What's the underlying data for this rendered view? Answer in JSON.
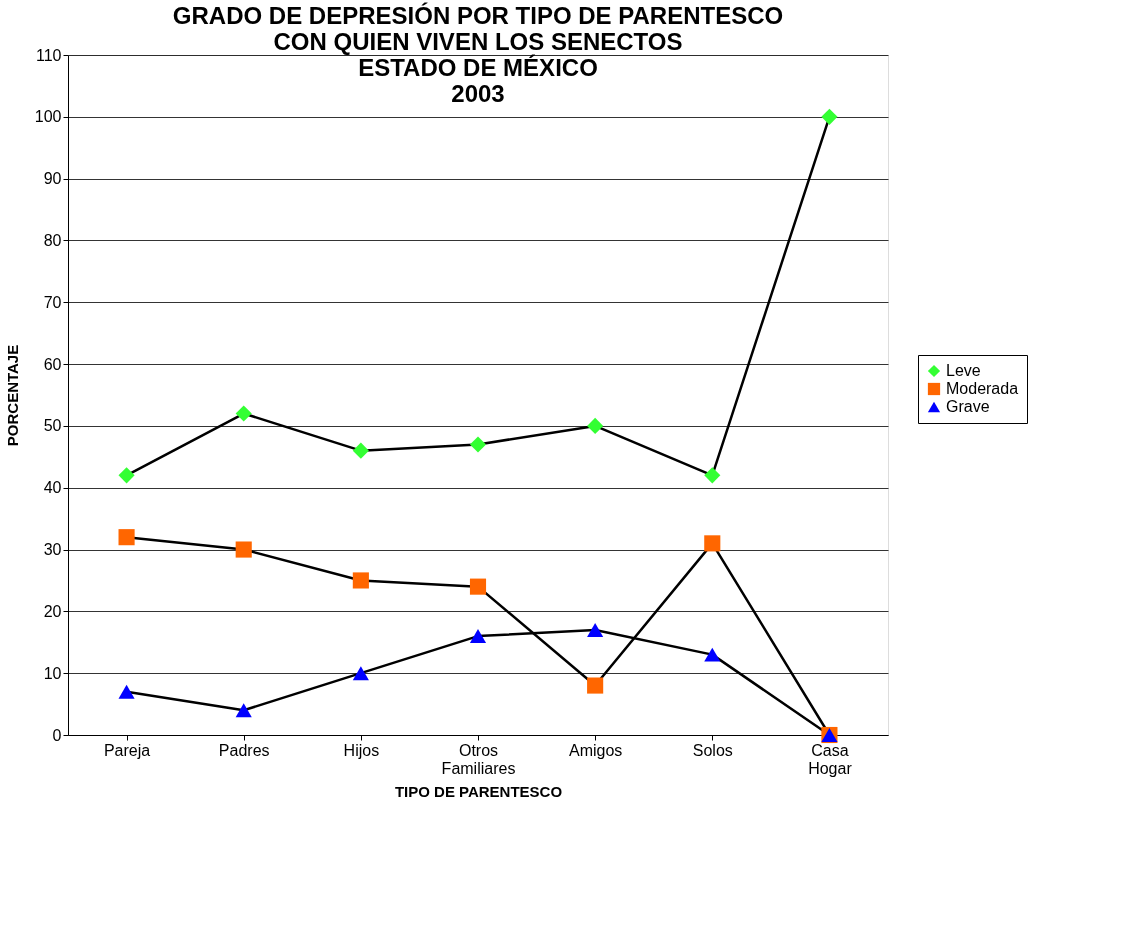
{
  "chart_data": {
    "type": "line",
    "title": "GRADO DE DEPRESIÓN POR TIPO DE PARENTESCO\nCON QUIEN VIVEN LOS SENECTOS\nESTADO DE MÉXICO\n2003",
    "xlabel": "TIPO DE PARENTESCO",
    "ylabel": "PORCENTAJE",
    "categories": [
      "Pareja",
      "Padres",
      "Hijos",
      "Otros Familiares",
      "Amigos",
      "Solos",
      "Casa Hogar"
    ],
    "series": [
      {
        "name": "Leve",
        "color": "#33ff33",
        "marker": "diamond",
        "values": [
          42,
          52,
          46,
          47,
          50,
          42,
          100
        ]
      },
      {
        "name": "Moderada",
        "color": "#ff6600",
        "marker": "square",
        "values": [
          32,
          30,
          25,
          24,
          8,
          31,
          0
        ]
      },
      {
        "name": "Grave",
        "color": "#0000ff",
        "marker": "triangle",
        "values": [
          7,
          4,
          10,
          16,
          17,
          13,
          0
        ]
      }
    ],
    "ylim": [
      0,
      110
    ],
    "yticks": [
      0,
      10,
      20,
      30,
      40,
      50,
      60,
      70,
      80,
      90,
      100,
      110
    ],
    "grid": "y",
    "legend": "right",
    "line_style": "solid"
  }
}
